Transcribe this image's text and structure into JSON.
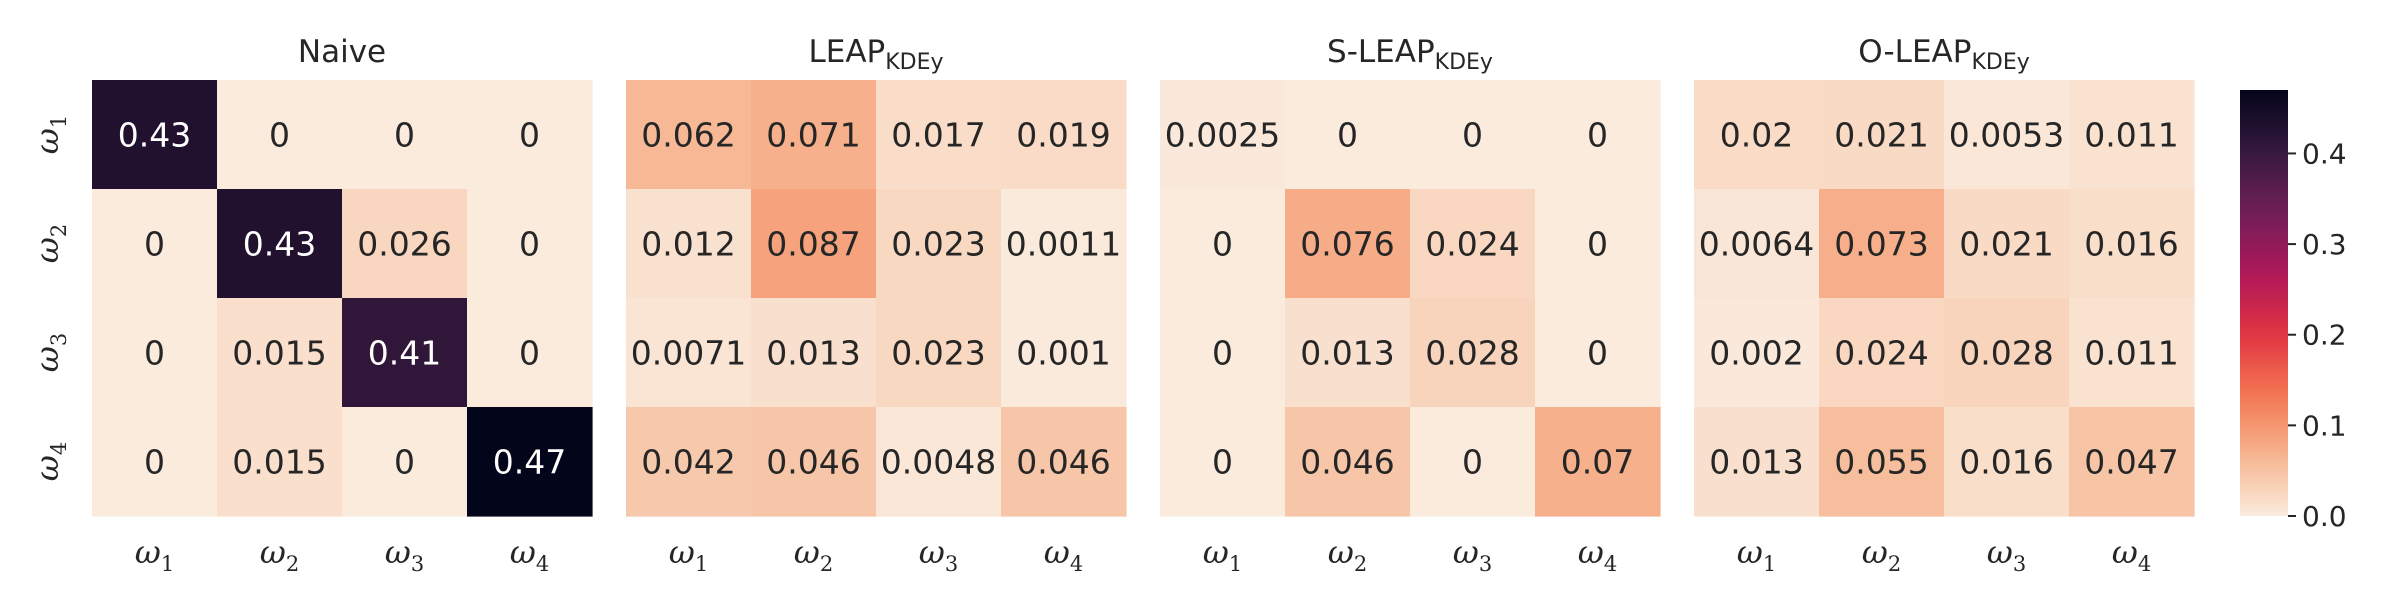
{
  "chart_data": [
    {
      "type": "heatmap",
      "title": "Naive",
      "title_sub": "",
      "x_categories": [
        "ω1",
        "ω2",
        "ω3",
        "ω4"
      ],
      "y_categories": [
        "ω1",
        "ω2",
        "ω3",
        "ω4"
      ],
      "values": [
        [
          0.43,
          0,
          0,
          0
        ],
        [
          0,
          0.43,
          0.026,
          0
        ],
        [
          0,
          0.015,
          0.41,
          0
        ],
        [
          0,
          0.015,
          0,
          0.47
        ]
      ],
      "labels": [
        [
          "0.43",
          "0",
          "0",
          "0"
        ],
        [
          "0",
          "0.43",
          "0.026",
          "0"
        ],
        [
          "0",
          "0.015",
          "0.41",
          "0"
        ],
        [
          "0",
          "0.015",
          "0",
          "0.47"
        ]
      ]
    },
    {
      "type": "heatmap",
      "title": "LEAP",
      "title_sub": "KDEy",
      "x_categories": [
        "ω1",
        "ω2",
        "ω3",
        "ω4"
      ],
      "y_categories": [
        "ω1",
        "ω2",
        "ω3",
        "ω4"
      ],
      "values": [
        [
          0.062,
          0.071,
          0.017,
          0.019
        ],
        [
          0.012,
          0.087,
          0.023,
          0.0011
        ],
        [
          0.0071,
          0.013,
          0.023,
          0.001
        ],
        [
          0.042,
          0.046,
          0.0048,
          0.046
        ]
      ],
      "labels": [
        [
          "0.062",
          "0.071",
          "0.017",
          "0.019"
        ],
        [
          "0.012",
          "0.087",
          "0.023",
          "0.0011"
        ],
        [
          "0.0071",
          "0.013",
          "0.023",
          "0.001"
        ],
        [
          "0.042",
          "0.046",
          "0.0048",
          "0.046"
        ]
      ]
    },
    {
      "type": "heatmap",
      "title": "S-LEAP",
      "title_sub": "KDEy",
      "x_categories": [
        "ω1",
        "ω2",
        "ω3",
        "ω4"
      ],
      "y_categories": [
        "ω1",
        "ω2",
        "ω3",
        "ω4"
      ],
      "values": [
        [
          0.0025,
          0,
          0,
          0
        ],
        [
          0,
          0.076,
          0.024,
          0
        ],
        [
          0,
          0.013,
          0.028,
          0
        ],
        [
          0,
          0.046,
          0,
          0.07
        ]
      ],
      "labels": [
        [
          "0.0025",
          "0",
          "0",
          "0"
        ],
        [
          "0",
          "0.076",
          "0.024",
          "0"
        ],
        [
          "0",
          "0.013",
          "0.028",
          "0"
        ],
        [
          "0",
          "0.046",
          "0",
          "0.07"
        ]
      ]
    },
    {
      "type": "heatmap",
      "title": "O-LEAP",
      "title_sub": "KDEy",
      "x_categories": [
        "ω1",
        "ω2",
        "ω3",
        "ω4"
      ],
      "y_categories": [
        "ω1",
        "ω2",
        "ω3",
        "ω4"
      ],
      "values": [
        [
          0.02,
          0.021,
          0.0053,
          0.011
        ],
        [
          0.0064,
          0.073,
          0.021,
          0.016
        ],
        [
          0.002,
          0.024,
          0.028,
          0.011
        ],
        [
          0.013,
          0.055,
          0.016,
          0.047
        ]
      ],
      "labels": [
        [
          "0.02",
          "0.021",
          "0.0053",
          "0.011"
        ],
        [
          "0.0064",
          "0.073",
          "0.021",
          "0.016"
        ],
        [
          "0.002",
          "0.024",
          "0.028",
          "0.011"
        ],
        [
          "0.013",
          "0.055",
          "0.016",
          "0.047"
        ]
      ]
    }
  ],
  "colorbar": {
    "colormap": "rocket_r",
    "vmin": 0,
    "vmax": 0.47,
    "ticks": [
      0.0,
      0.1,
      0.2,
      0.3,
      0.4
    ],
    "tick_labels": [
      "0.0",
      "0.1",
      "0.2",
      "0.3",
      "0.4"
    ]
  },
  "colors": {
    "text_on_light": "#262626",
    "text_on_dark": "#ffffff",
    "rocket_r_stops": [
      "#faebdd",
      "#f6b48f",
      "#f37651",
      "#e13342",
      "#ad1759",
      "#701f57",
      "#35193e",
      "#03051a"
    ]
  }
}
